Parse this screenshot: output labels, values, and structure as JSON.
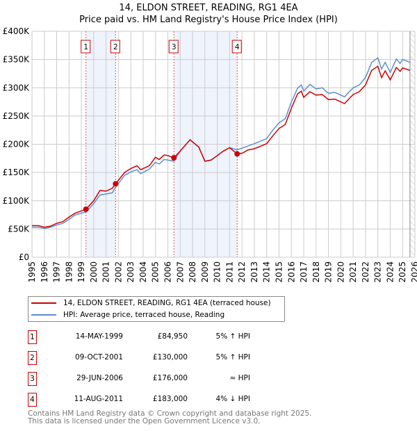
{
  "chart_data": {
    "type": "line",
    "title": "14, ELDON STREET, READING, RG1 4EA",
    "subtitle": "Price paid vs. HM Land Registry's House Price Index (HPI)",
    "xlim": [
      1995,
      2026
    ],
    "ylim": [
      0,
      400000
    ],
    "x_ticks": [
      "1995",
      "1996",
      "1997",
      "1998",
      "1999",
      "2000",
      "2001",
      "2002",
      "2003",
      "2004",
      "2005",
      "2006",
      "2007",
      "2008",
      "2009",
      "2010",
      "2011",
      "2012",
      "2013",
      "2014",
      "2015",
      "2016",
      "2017",
      "2018",
      "2019",
      "2020",
      "2021",
      "2022",
      "2023",
      "2024",
      "2025",
      "2026"
    ],
    "y_ticks": [
      {
        "v": 0,
        "l": "£0"
      },
      {
        "v": 50000,
        "l": "£50K"
      },
      {
        "v": 100000,
        "l": "£100K"
      },
      {
        "v": 150000,
        "l": "£150K"
      },
      {
        "v": 200000,
        "l": "£200K"
      },
      {
        "v": 250000,
        "l": "£250K"
      },
      {
        "v": 300000,
        "l": "£300K"
      },
      {
        "v": 350000,
        "l": "£350K"
      },
      {
        "v": 400000,
        "l": "£400K"
      }
    ],
    "grid": true,
    "shaded_ranges": [
      [
        1999.37,
        2001.77
      ],
      [
        2006.49,
        2011.61
      ]
    ],
    "hatched_from": 2025.6,
    "series": [
      {
        "name": "14, ELDON STREET, READING, RG1 4EA (terraced house)",
        "color": "#cc0000",
        "x": [
          1995,
          1995.5,
          1996,
          1996.5,
          1997,
          1997.5,
          1998,
          1998.5,
          1999,
          1999.37,
          2000,
          2000.5,
          2001,
          2001.5,
          2001.77,
          2002.5,
          2003,
          2003.5,
          2003.8,
          2004.5,
          2005,
          2005.3,
          2005.7,
          2006,
          2006.49,
          2007,
          2007.8,
          2008.5,
          2009,
          2009.5,
          2010,
          2010.5,
          2011,
          2011.61,
          2012,
          2012.5,
          2013,
          2014,
          2014.5,
          2015,
          2015.5,
          2016,
          2016.5,
          2016.8,
          2017,
          2017.5,
          2018,
          2018.5,
          2019,
          2019.5,
          2020,
          2020.3,
          2021,
          2021.5,
          2022,
          2022.5,
          2023,
          2023.3,
          2023.6,
          2024,
          2024.5,
          2024.8,
          2025,
          2025.6
        ],
        "y": [
          56000,
          56000,
          53000,
          55000,
          60000,
          63000,
          71000,
          78000,
          82000,
          84950,
          100000,
          118000,
          117000,
          122000,
          130000,
          150000,
          157000,
          162000,
          155000,
          162000,
          177000,
          173000,
          181000,
          180000,
          176000,
          188000,
          208000,
          195000,
          170000,
          172000,
          180000,
          188000,
          194000,
          183000,
          184000,
          190000,
          192000,
          201000,
          215000,
          228000,
          235000,
          264000,
          289000,
          294000,
          283000,
          293000,
          287000,
          288000,
          279000,
          280000,
          275000,
          272000,
          288000,
          293000,
          305000,
          331000,
          338000,
          318000,
          330000,
          314000,
          336000,
          329000,
          335000,
          331000
        ]
      },
      {
        "name": "HPI: Average price, terraced house, Reading",
        "color": "#5b8fd0",
        "x": [
          1995,
          1995.5,
          1996,
          1996.5,
          1997,
          1997.5,
          1998,
          1998.5,
          1999,
          1999.37,
          2000,
          2000.5,
          2001,
          2001.5,
          2001.77,
          2002.5,
          2003,
          2003.5,
          2003.8,
          2004.5,
          2005,
          2005.3,
          2005.7,
          2006,
          2006.49,
          2007,
          2007.8,
          2008.5,
          2009,
          2009.5,
          2010,
          2010.5,
          2011,
          2011.61,
          2012,
          2012.5,
          2013,
          2014,
          2014.5,
          2015,
          2015.5,
          2016,
          2016.5,
          2016.8,
          2017,
          2017.5,
          2018,
          2018.5,
          2019,
          2019.5,
          2020,
          2020.3,
          2021,
          2021.5,
          2022,
          2022.5,
          2023,
          2023.3,
          2023.6,
          2024,
          2024.5,
          2024.8,
          2025,
          2025.6
        ],
        "y": [
          53000,
          53000,
          51000,
          53000,
          57000,
          60000,
          67000,
          75000,
          78000,
          80000,
          95000,
          110000,
          112000,
          114000,
          124000,
          145000,
          151000,
          155000,
          148000,
          156000,
          168000,
          165000,
          173000,
          172000,
          170000,
          188000,
          208000,
          195000,
          170000,
          172000,
          180000,
          188000,
          194000,
          190000,
          193000,
          197000,
          201000,
          210000,
          225000,
          238000,
          245000,
          275000,
          299000,
          305000,
          294000,
          306000,
          298000,
          300000,
          290000,
          292000,
          287000,
          284000,
          300000,
          305000,
          318000,
          345000,
          353000,
          333000,
          345000,
          327000,
          351000,
          343000,
          350000,
          345000
        ]
      }
    ],
    "sales": [
      {
        "n": "1",
        "x": 1999.37,
        "price": 84950,
        "date": "14-MAY-1999",
        "price_label": "£84,950",
        "rel": "5% ↑ HPI"
      },
      {
        "n": "2",
        "x": 2001.77,
        "price": 130000,
        "date": "09-OCT-2001",
        "price_label": "£130,000",
        "rel": "5% ↑ HPI"
      },
      {
        "n": "3",
        "x": 2006.49,
        "price": 176000,
        "date": "29-JUN-2006",
        "price_label": "£176,000",
        "rel": "≈ HPI"
      },
      {
        "n": "4",
        "x": 2011.61,
        "price": 183000,
        "date": "11-AUG-2011",
        "price_label": "£183,000",
        "rel": "4% ↓ HPI"
      }
    ]
  },
  "footer": [
    "Contains HM Land Registry data © Crown copyright and database right 2025.",
    "This data is licensed under the Open Government Licence v3.0."
  ]
}
